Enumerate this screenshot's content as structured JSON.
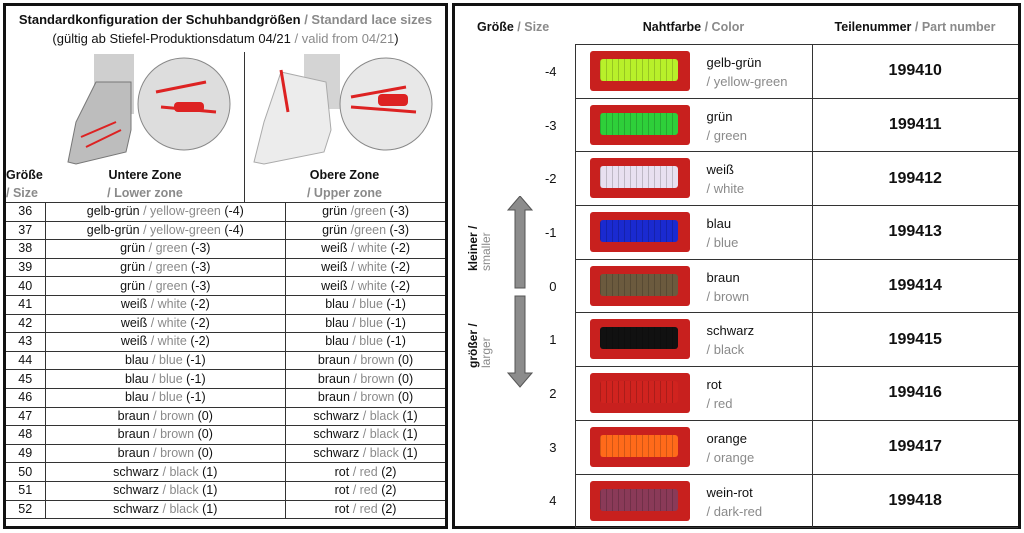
{
  "left": {
    "title_de": "Standardkonfiguration der Schuhbandgrößen",
    "title_en": "/ Standard lace sizes",
    "subtitle_de": "(gültig ab Stiefel-Produktionsdatum 04/21",
    "subtitle_en": "/ valid from 04/21",
    "subtitle_end": ")",
    "col_size_de": "Größe",
    "col_size_en": "/ Size",
    "col_lower_de": "Untere Zone",
    "col_lower_en": "/ Lower zone",
    "col_upper_de": "Obere Zone",
    "col_upper_en": "/ Upper zone",
    "rows": [
      [
        "36",
        "gelb-grün",
        "/ yellow-green",
        "(-4)",
        "grün",
        "/green",
        "(-3)"
      ],
      [
        "37",
        "gelb-grün",
        "/ yellow-green",
        "(-4)",
        "grün",
        "/green",
        "(-3)"
      ],
      [
        "38",
        "grün",
        "/ green",
        "(-3)",
        "weiß",
        "/ white",
        "(-2)"
      ],
      [
        "39",
        "grün",
        "/ green",
        "(-3)",
        "weiß",
        "/ white",
        "(-2)"
      ],
      [
        "40",
        "grün",
        "/ green",
        "(-3)",
        "weiß",
        "/ white",
        "(-2)"
      ],
      [
        "41",
        "weiß",
        "/ white",
        "(-2)",
        "blau",
        "/ blue",
        "(-1)"
      ],
      [
        "42",
        "weiß",
        "/ white",
        "(-2)",
        "blau",
        "/ blue",
        "(-1)"
      ],
      [
        "43",
        "weiß",
        "/ white",
        "(-2)",
        "blau",
        "/ blue",
        "(-1)"
      ],
      [
        "44",
        "blau",
        "/ blue",
        "(-1)",
        "braun",
        "/ brown",
        "(0)"
      ],
      [
        "45",
        "blau",
        "/ blue",
        "(-1)",
        "braun",
        "/ brown",
        "(0)"
      ],
      [
        "46",
        "blau",
        "/ blue",
        "(-1)",
        "braun",
        "/ brown",
        "(0)"
      ],
      [
        "47",
        "braun",
        "/ brown",
        "(0)",
        "schwarz",
        "/ black",
        "(1)"
      ],
      [
        "48",
        "braun",
        "/ brown",
        "(0)",
        "schwarz",
        "/ black",
        "(1)"
      ],
      [
        "49",
        "braun",
        "/ brown",
        "(0)",
        "schwarz",
        "/ black",
        "(1)"
      ],
      [
        "50",
        "schwarz",
        "/ black",
        "(1)",
        "rot",
        "/ red",
        "(2)"
      ],
      [
        "51",
        "schwarz",
        "/ black",
        "(1)",
        "rot",
        "/ red",
        "(2)"
      ],
      [
        "52",
        "schwarz",
        "/ black",
        "(1)",
        "rot",
        "/ red",
        "(2)"
      ]
    ]
  },
  "right": {
    "col_size_de": "Größe",
    "col_size_en": "/ Size",
    "col_color_de": "Nahtfarbe",
    "col_color_en": "/ Color",
    "col_part_de": "Teilenummer",
    "col_part_en": "/ Part number",
    "smaller_de": "kleiner /",
    "smaller_en": "smaller",
    "larger_de": "größer /",
    "larger_en": "larger",
    "rows": [
      {
        "size": "-4",
        "de": "gelb-grün",
        "en": "/ yellow-green",
        "part": "199410",
        "color": "#b8f02a"
      },
      {
        "size": "-3",
        "de": "grün",
        "en": "/ green",
        "part": "199411",
        "color": "#2ecf3a"
      },
      {
        "size": "-2",
        "de": "weiß",
        "en": "/ white",
        "part": "199412",
        "color": "#e8e0f0"
      },
      {
        "size": "-1",
        "de": "blau",
        "en": "/ blue",
        "part": "199413",
        "color": "#1a2ad0"
      },
      {
        "size": "0",
        "de": "braun",
        "en": "/ brown",
        "part": "199414",
        "color": "#6b5a3e"
      },
      {
        "size": "1",
        "de": "schwarz",
        "en": "/ black",
        "part": "199415",
        "color": "#111111"
      },
      {
        "size": "2",
        "de": "rot",
        "en": "/ red",
        "part": "199416",
        "color": "#d0231f"
      },
      {
        "size": "3",
        "de": "orange",
        "en": "/ orange",
        "part": "199417",
        "color": "#ff6a1a"
      },
      {
        "size": "4",
        "de": "wein-rot",
        "en": "/ dark-red",
        "part": "199418",
        "color": "#8a3a58"
      }
    ]
  }
}
